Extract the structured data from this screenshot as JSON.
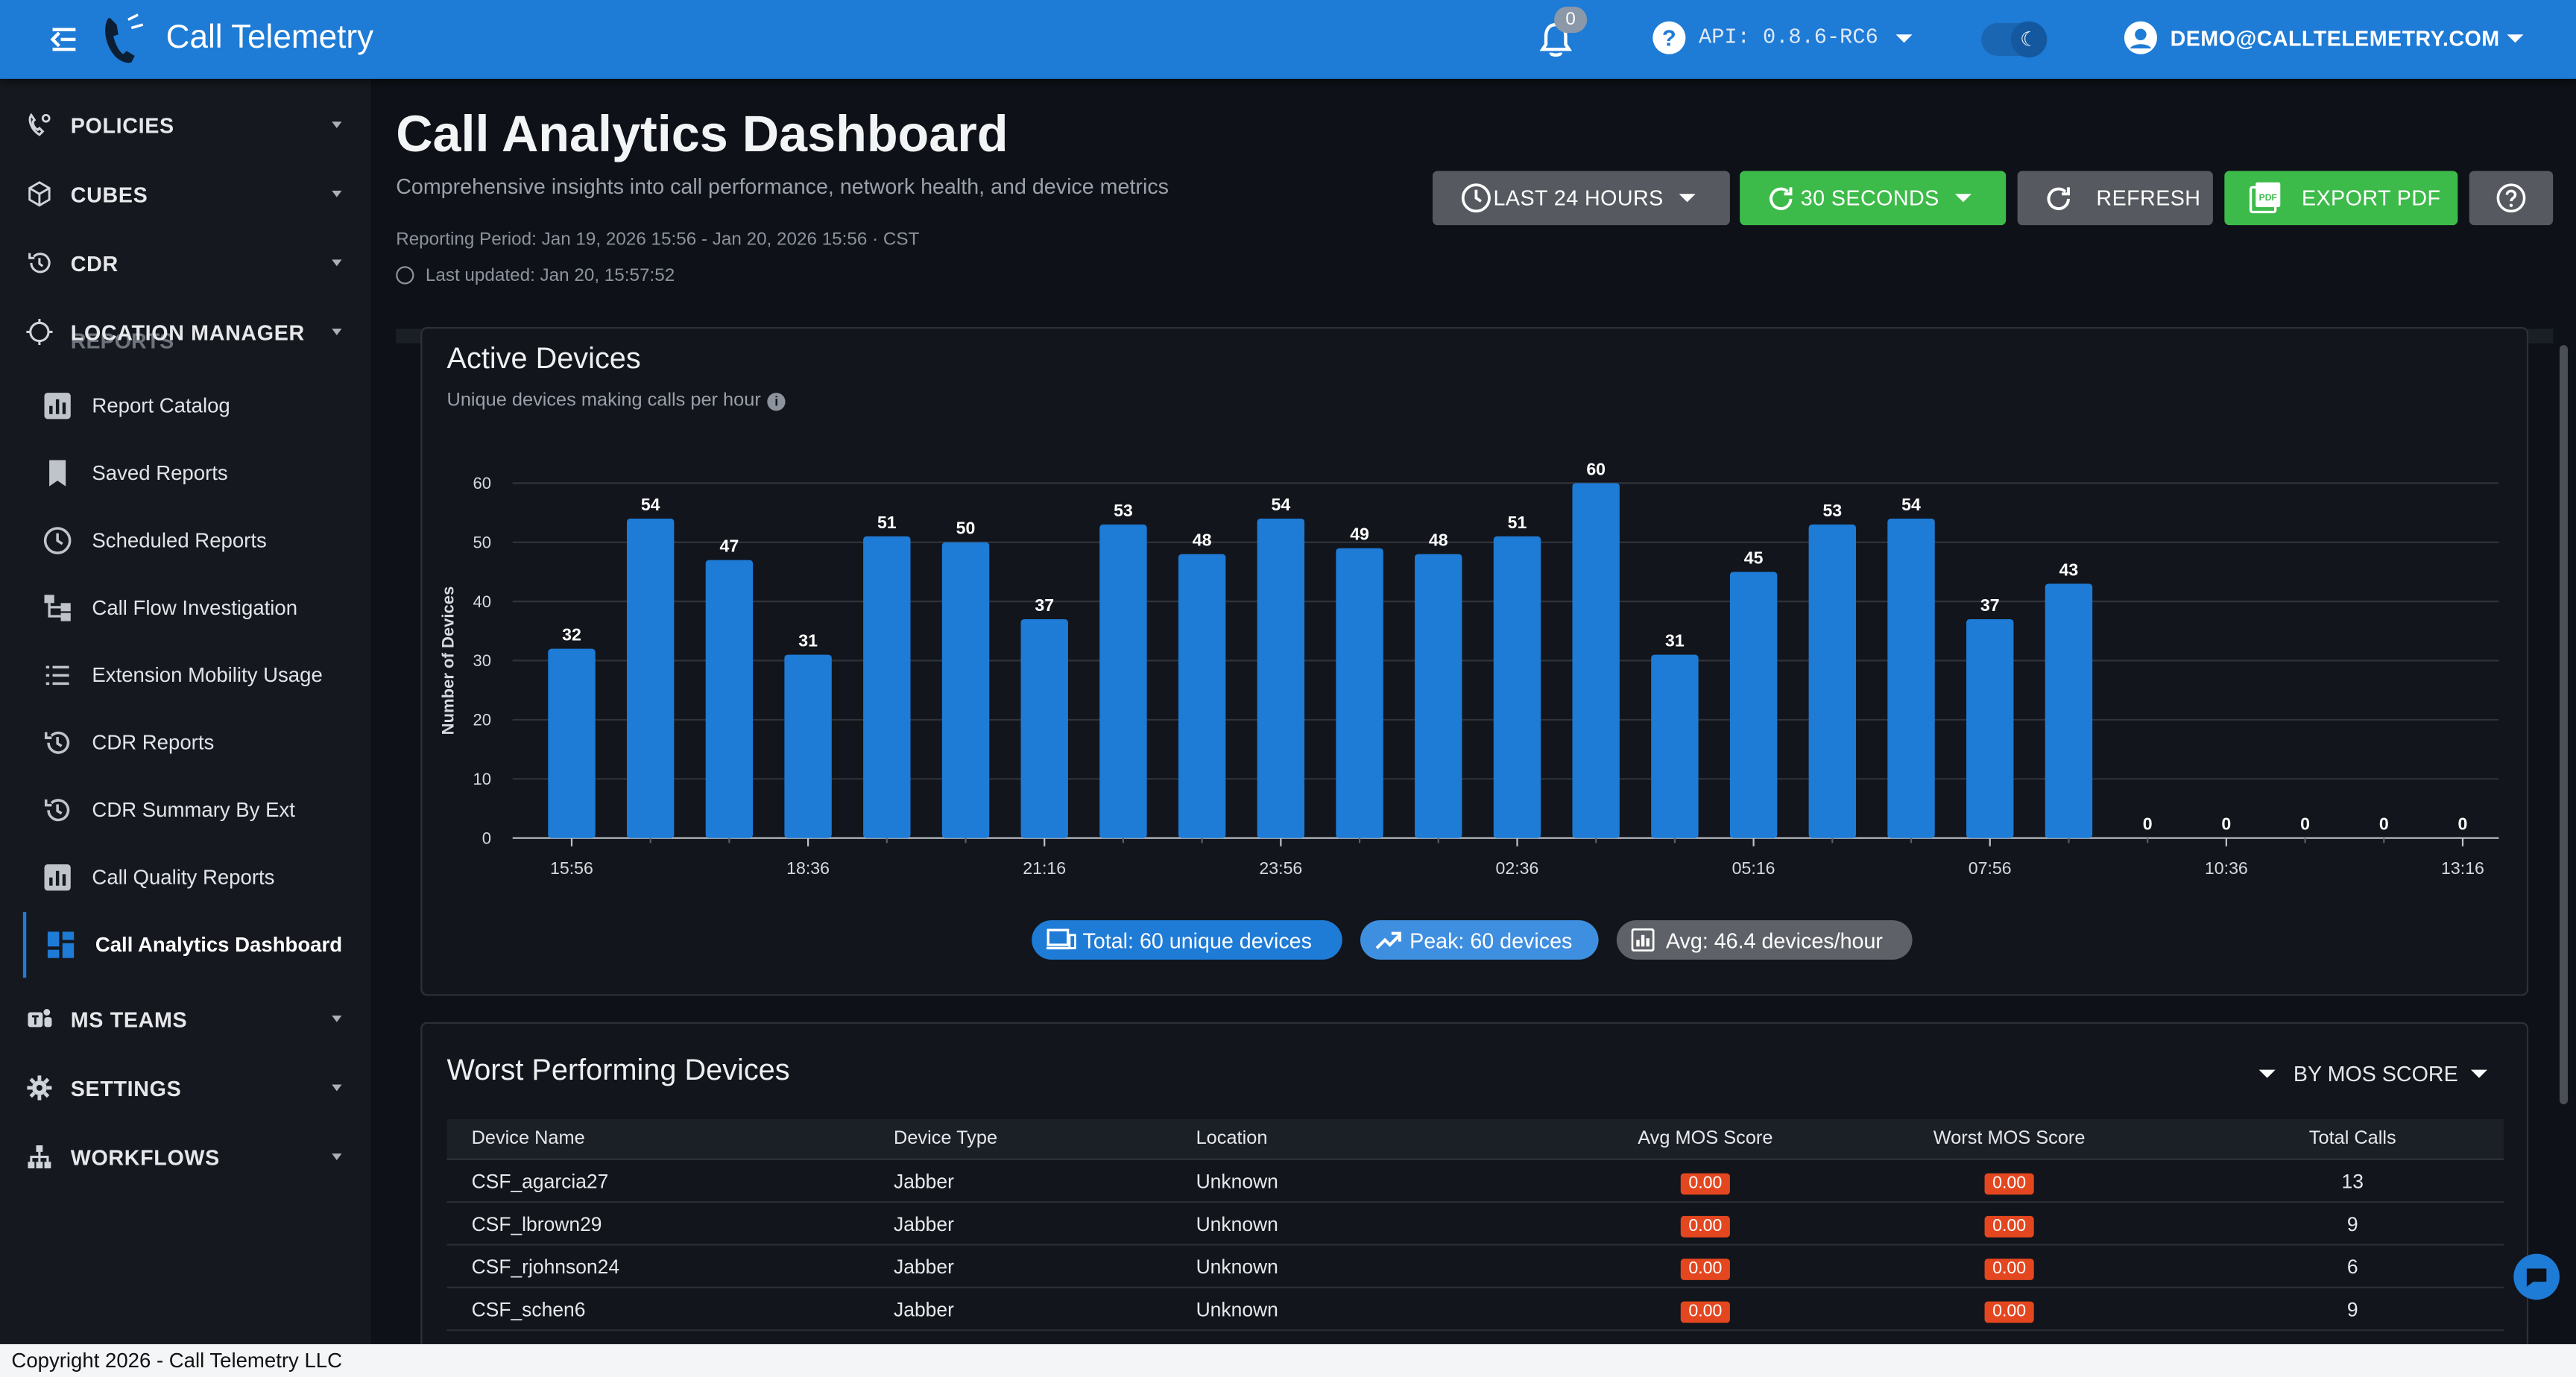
{
  "app": {
    "title": "Call Telemetry",
    "notifications_count": "0",
    "api_version": "API: 0.8.6-RC6",
    "user_email": "DEMO@CALLTELEMETRY.COM",
    "brand_color": "#1e7bd6"
  },
  "sidebar": {
    "sections": [
      {
        "label": "POLICIES",
        "icon": "phone-settings-icon"
      },
      {
        "label": "CUBES",
        "icon": "cube-icon"
      },
      {
        "label": "CDR",
        "icon": "history-icon"
      },
      {
        "label": "LOCATION MANAGER",
        "icon": "location-icon"
      }
    ],
    "ghost_label": "REPORTS",
    "reports": [
      {
        "label": "Report Catalog",
        "icon": "bar-chart-icon"
      },
      {
        "label": "Saved Reports",
        "icon": "bookmark-icon"
      },
      {
        "label": "Scheduled Reports",
        "icon": "clock-icon"
      },
      {
        "label": "Call Flow Investigation",
        "icon": "flow-icon"
      },
      {
        "label": "Extension Mobility Usage",
        "icon": "list-icon"
      },
      {
        "label": "CDR Reports",
        "icon": "history-icon"
      },
      {
        "label": "CDR Summary By Ext",
        "icon": "history-icon"
      },
      {
        "label": "Call Quality Reports",
        "icon": "bar-chart-icon"
      },
      {
        "label": "Call Analytics Dashboard",
        "icon": "dashboard-icon",
        "active": true
      }
    ],
    "bottom": [
      {
        "label": "MS TEAMS",
        "icon": "teams-icon"
      },
      {
        "label": "SETTINGS",
        "icon": "gear-icon"
      },
      {
        "label": "WORKFLOWS",
        "icon": "hierarchy-icon"
      }
    ]
  },
  "header": {
    "title": "Call Analytics Dashboard",
    "subtitle": "Comprehensive insights into call performance, network health, and device metrics",
    "reporting_period": "Reporting Period: Jan 19, 2026 15:56 - Jan 20, 2026 15:56 · CST",
    "last_updated": "Last updated: Jan 20, 15:57:52"
  },
  "toolbar": {
    "range_label": "LAST 24 HOURS",
    "interval_label": "30 SECONDS",
    "refresh_label": "REFRESH",
    "export_label": "EXPORT PDF"
  },
  "active_devices": {
    "title": "Active Devices",
    "subtitle": "Unique devices making calls per hour",
    "chips": {
      "total": "Total: 60 unique devices",
      "peak": "Peak: 60 devices",
      "avg": "Avg: 46.4 devices/hour"
    }
  },
  "chart_data": {
    "type": "bar",
    "title": "Active Devices",
    "ylabel": "Number of Devices",
    "xlabel": "",
    "ylim": [
      0,
      60
    ],
    "yticks": [
      0,
      10,
      20,
      30,
      40,
      50,
      60
    ],
    "grid": true,
    "x_tick_labels": [
      {
        "index": 0,
        "label": "15:56"
      },
      {
        "index": 3,
        "label": "18:36"
      },
      {
        "index": 6,
        "label": "21:16"
      },
      {
        "index": 9,
        "label": "23:56"
      },
      {
        "index": 12,
        "label": "02:36"
      },
      {
        "index": 15,
        "label": "05:16"
      },
      {
        "index": 18,
        "label": "07:56"
      },
      {
        "index": 21,
        "label": "10:36"
      },
      {
        "index": 24,
        "label": "13:16"
      }
    ],
    "values": [
      32,
      54,
      47,
      31,
      51,
      50,
      37,
      53,
      48,
      54,
      49,
      48,
      51,
      60,
      31,
      45,
      53,
      54,
      37,
      43,
      0,
      0,
      0,
      0,
      0
    ],
    "bar_color": "#1e7bd6"
  },
  "worst_devices": {
    "title": "Worst Performing Devices",
    "sort_label": "BY MOS SCORE",
    "columns": [
      "Device Name",
      "Device Type",
      "Location",
      "Avg MOS Score",
      "Worst MOS Score",
      "Total Calls"
    ],
    "rows": [
      [
        "CSF_agarcia27",
        "Jabber",
        "Unknown",
        "0.00",
        "0.00",
        "13"
      ],
      [
        "CSF_lbrown29",
        "Jabber",
        "Unknown",
        "0.00",
        "0.00",
        "9"
      ],
      [
        "CSF_rjohnson24",
        "Jabber",
        "Unknown",
        "0.00",
        "0.00",
        "6"
      ],
      [
        "CSF_schen6",
        "Jabber",
        "Unknown",
        "0.00",
        "0.00",
        "9"
      ]
    ]
  },
  "footer": {
    "copyright": "Copyright 2026 - Call Telemetry LLC"
  }
}
